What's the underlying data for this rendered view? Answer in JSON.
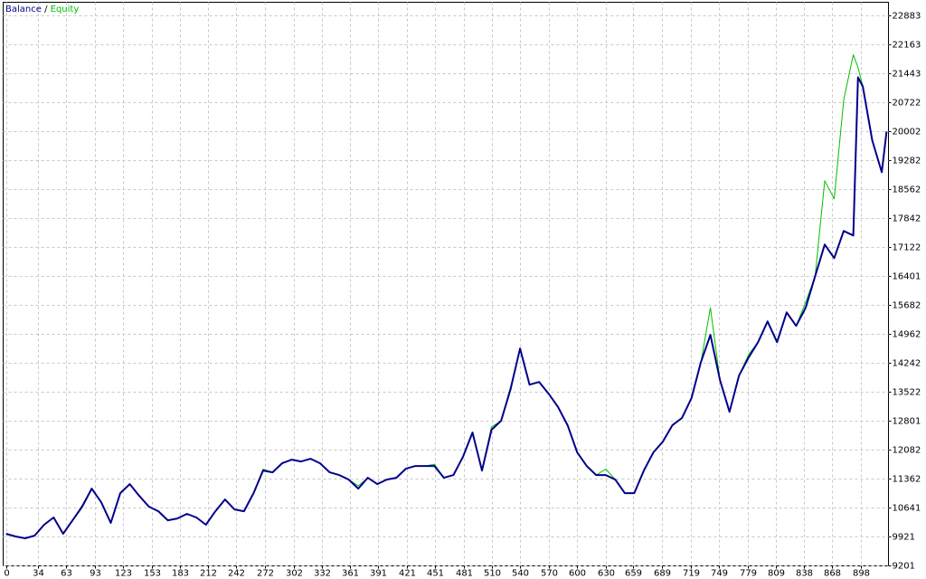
{
  "chart_data": {
    "type": "line",
    "legend_separator": "/",
    "x": [
      0,
      10,
      20,
      30,
      40,
      50,
      60,
      70,
      80,
      90,
      100,
      110,
      120,
      130,
      140,
      150,
      160,
      170,
      180,
      190,
      200,
      210,
      220,
      230,
      240,
      250,
      260,
      270,
      280,
      290,
      300,
      310,
      320,
      330,
      340,
      350,
      360,
      370,
      380,
      390,
      400,
      410,
      420,
      430,
      440,
      450,
      460,
      470,
      480,
      490,
      500,
      510,
      520,
      530,
      540,
      550,
      560,
      570,
      580,
      590,
      600,
      610,
      620,
      630,
      640,
      650,
      660,
      670,
      680,
      690,
      700,
      710,
      720,
      730,
      740,
      750,
      760,
      770,
      780,
      790,
      800,
      810,
      820,
      830,
      840,
      850,
      860,
      870,
      880,
      890,
      895,
      900,
      910,
      920,
      925
    ],
    "series": [
      {
        "name": "Balance",
        "color": "#00008b",
        "values": [
          9989,
          9921,
          9876,
          9943,
          10214,
          10394,
          9989,
          10326,
          10664,
          11114,
          10776,
          10259,
          11001,
          11226,
          10934,
          10664,
          10551,
          10326,
          10371,
          10484,
          10394,
          10214,
          10551,
          10844,
          10596,
          10551,
          11001,
          11564,
          11519,
          11744,
          11834,
          11789,
          11856,
          11744,
          11519,
          11451,
          11339,
          11114,
          11384,
          11226,
          11339,
          11384,
          11609,
          11676,
          11676,
          11676,
          11384,
          11451,
          11901,
          12509,
          11564,
          12576,
          12801,
          13589,
          14601,
          13701,
          13769,
          13476,
          13139,
          12689,
          12014,
          11676,
          11451,
          11451,
          11339,
          11001,
          11001,
          11564,
          12014,
          12284,
          12689,
          12869,
          13364,
          14264,
          14939,
          13814,
          13026,
          13926,
          14376,
          14759,
          15276,
          14759,
          15501,
          15164,
          15614,
          16401,
          17189,
          16851,
          17526,
          17414,
          21351,
          21126,
          19776,
          18989,
          20001
        ]
      },
      {
        "name": "Equity",
        "color": "#00c000",
        "values": [
          9989,
          9921,
          9876,
          9943,
          10214,
          10394,
          9989,
          10326,
          10700,
          11114,
          10776,
          10259,
          11001,
          11226,
          10934,
          10664,
          10551,
          10326,
          10371,
          10484,
          10394,
          10214,
          10551,
          10844,
          10596,
          10551,
          11001,
          11600,
          11519,
          11744,
          11834,
          11789,
          11856,
          11744,
          11519,
          11451,
          11339,
          11180,
          11384,
          11226,
          11339,
          11384,
          11609,
          11676,
          11676,
          11720,
          11384,
          11451,
          11901,
          12509,
          11564,
          12650,
          12801,
          13650,
          14601,
          13701,
          13769,
          13476,
          13139,
          12689,
          12014,
          11676,
          11451,
          11600,
          11339,
          11001,
          11001,
          11564,
          12014,
          12284,
          12689,
          12869,
          13364,
          14264,
          15614,
          13814,
          13026,
          13926,
          14450,
          14759,
          15276,
          14759,
          15501,
          15164,
          15750,
          16401,
          18776,
          18326,
          20789,
          21914,
          21600,
          21126,
          19776,
          18989,
          20001
        ]
      }
    ],
    "xlim": [
      -3,
      927
    ],
    "ylim": [
      9190,
      23220
    ],
    "xticks": [
      0,
      34,
      63,
      93,
      123,
      153,
      183,
      212,
      242,
      272,
      302,
      332,
      361,
      391,
      421,
      451,
      481,
      510,
      540,
      570,
      600,
      630,
      659,
      689,
      719,
      749,
      779,
      809,
      838,
      868,
      898
    ],
    "yticks": [
      9201,
      9921,
      10641,
      11362,
      12082,
      12801,
      13522,
      14242,
      14962,
      15682,
      16401,
      17122,
      17842,
      18562,
      19282,
      20002,
      20722,
      21443,
      22163,
      22883
    ],
    "grid": true
  }
}
